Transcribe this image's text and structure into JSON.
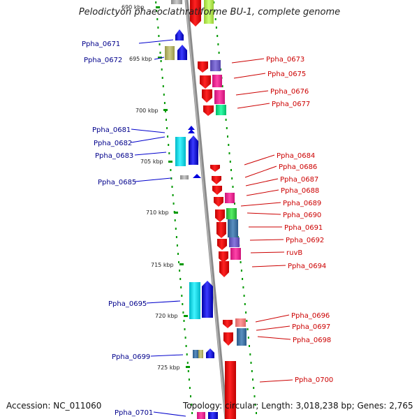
{
  "title": "Pelodictyon phaeoclathratiforme BU-1, complete genome",
  "accession": "Accession: NC_011060",
  "topology": "Topology: circular; Length: 3,018,238 bp; Genes: 2,765",
  "scale_ticks": [
    "690 kbp",
    "695 kbp",
    "700 kbp",
    "705 kbp",
    "710 kbp",
    "715 kbp",
    "720 kbp",
    "725 kbp"
  ],
  "left_labels": [
    "Ppha_0671",
    "Ppha_0672",
    "Ppha_0681",
    "Ppha_0682",
    "Ppha_0683",
    "Ppha_0685",
    "Ppha_0695",
    "Ppha_0699",
    "Ppha_0701"
  ],
  "right_labels": [
    "Ppha_0673",
    "Ppha_0675",
    "Ppha_0676",
    "Ppha_0677",
    "Ppha_0684",
    "Ppha_0686",
    "Ppha_0687",
    "Ppha_0688",
    "Ppha_0689",
    "Ppha_0690",
    "Ppha_0691",
    "Ppha_0692",
    "ruvB",
    "Ppha_0694",
    "Ppha_0696",
    "Ppha_0697",
    "Ppha_0698",
    "Ppha_0700"
  ],
  "colors": {
    "forward_strand": "#0000ee",
    "reverse_strand": "#ff0000",
    "backbone": "#888888",
    "dots": "#009900",
    "left_label": "#00008b",
    "right_label": "#cc0000"
  }
}
